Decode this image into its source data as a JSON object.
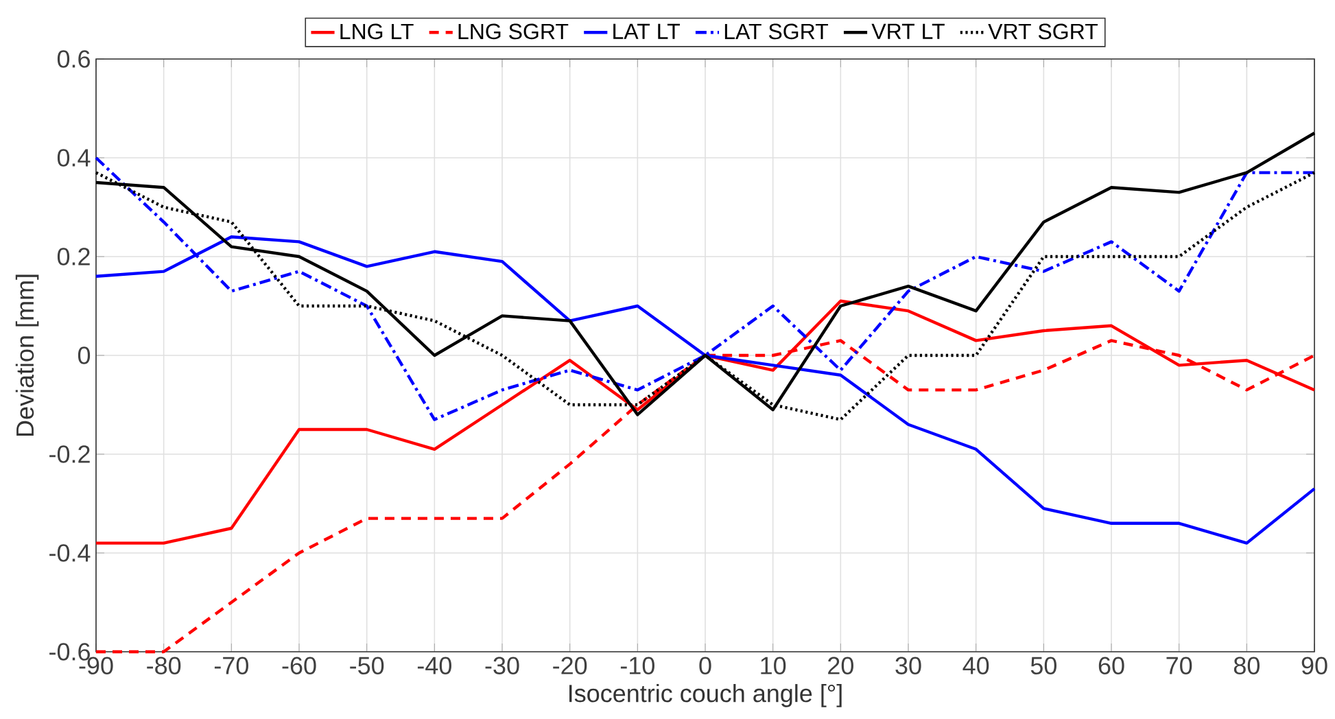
{
  "chart_data": {
    "type": "line",
    "xlabel": "Isocentric couch angle [°]",
    "ylabel": "Deviation [mm]",
    "x": [
      -90,
      -80,
      -70,
      -60,
      -50,
      -40,
      -30,
      -20,
      -10,
      0,
      10,
      20,
      30,
      40,
      50,
      60,
      70,
      80,
      90
    ],
    "series": [
      {
        "name": "LNG LT",
        "color": "#ff0000",
        "line_style": "solid",
        "values": [
          -0.38,
          -0.38,
          -0.35,
          -0.15,
          -0.15,
          -0.19,
          -0.1,
          -0.01,
          -0.11,
          0,
          -0.03,
          0.11,
          0.09,
          0.03,
          0.05,
          0.06,
          -0.02,
          -0.01,
          -0.07
        ]
      },
      {
        "name": "LNG SGRT",
        "color": "#ff0000",
        "line_style": "dashed",
        "values": [
          -0.6,
          -0.6,
          -0.5,
          -0.4,
          -0.33,
          -0.33,
          -0.33,
          -0.22,
          -0.1,
          0,
          0,
          0.03,
          -0.07,
          -0.07,
          -0.03,
          0.03,
          0.0,
          -0.07,
          0.0
        ]
      },
      {
        "name": "LAT LT",
        "color": "#0000ff",
        "line_style": "solid",
        "values": [
          0.16,
          0.17,
          0.24,
          0.23,
          0.18,
          0.21,
          0.19,
          0.07,
          0.1,
          0,
          -0.02,
          -0.04,
          -0.14,
          -0.19,
          -0.31,
          -0.34,
          -0.34,
          -0.38,
          -0.27
        ]
      },
      {
        "name": "LAT SGRT",
        "color": "#0000ff",
        "line_style": "dashdot",
        "values": [
          0.4,
          0.27,
          0.13,
          0.17,
          0.1,
          -0.13,
          -0.07,
          -0.03,
          -0.07,
          0,
          0.1,
          -0.03,
          0.13,
          0.2,
          0.17,
          0.23,
          0.13,
          0.37,
          0.37
        ]
      },
      {
        "name": "VRT LT",
        "color": "#000000",
        "line_style": "solid",
        "values": [
          0.35,
          0.34,
          0.22,
          0.2,
          0.13,
          0.0,
          0.08,
          0.07,
          -0.12,
          0,
          -0.11,
          0.1,
          0.14,
          0.09,
          0.27,
          0.34,
          0.33,
          0.37,
          0.45
        ]
      },
      {
        "name": "VRT SGRT",
        "color": "#000000",
        "line_style": "dotted",
        "values": [
          0.37,
          0.3,
          0.27,
          0.1,
          0.1,
          0.07,
          0.0,
          -0.1,
          -0.1,
          0,
          -0.1,
          -0.13,
          0.0,
          0.0,
          0.2,
          0.2,
          0.2,
          0.3,
          0.37
        ]
      }
    ],
    "xlim": [
      -90,
      90
    ],
    "xticks": [
      -90,
      -80,
      -70,
      -60,
      -50,
      -40,
      -30,
      -20,
      -10,
      0,
      10,
      20,
      30,
      40,
      50,
      60,
      70,
      80,
      90
    ],
    "ylim": [
      -0.6,
      0.6
    ],
    "yticks": [
      -0.6,
      -0.4,
      -0.2,
      0,
      0.2,
      0.4,
      0.6
    ],
    "grid": true,
    "legend": "top",
    "marker": "none"
  }
}
